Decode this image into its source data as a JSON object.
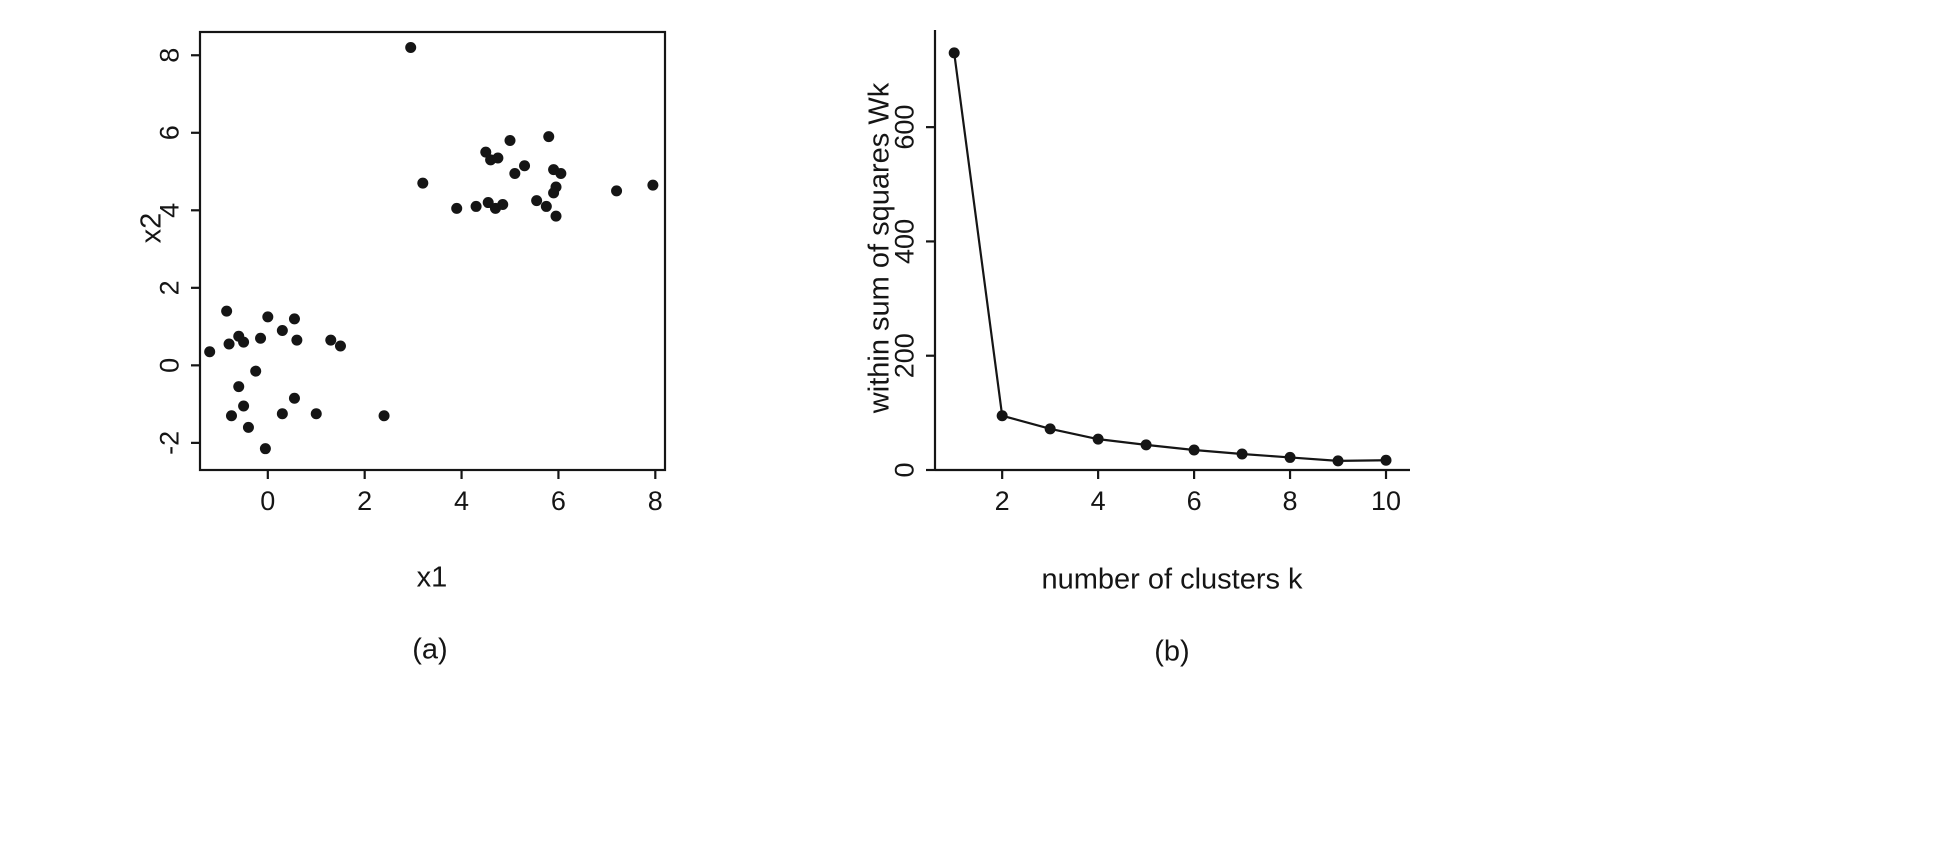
{
  "chart_data": [
    {
      "type": "scatter",
      "caption": "(a)",
      "xlabel": "x1",
      "ylabel": "x2",
      "xlim": [
        -1.4,
        8.2
      ],
      "ylim": [
        -2.7,
        8.6
      ],
      "xticks": [
        0,
        2,
        4,
        6,
        8
      ],
      "yticks": [
        -2,
        0,
        2,
        4,
        6,
        8
      ],
      "box": true,
      "grid": false,
      "points": [
        [
          -1.2,
          0.35
        ],
        [
          -0.85,
          1.4
        ],
        [
          -0.8,
          0.55
        ],
        [
          -0.6,
          0.75
        ],
        [
          -0.5,
          0.6
        ],
        [
          -0.15,
          0.7
        ],
        [
          0.0,
          1.25
        ],
        [
          0.3,
          0.9
        ],
        [
          0.55,
          1.2
        ],
        [
          0.6,
          0.65
        ],
        [
          1.3,
          0.65
        ],
        [
          1.5,
          0.5
        ],
        [
          -0.25,
          -0.15
        ],
        [
          -0.6,
          -0.55
        ],
        [
          -0.5,
          -1.05
        ],
        [
          -0.75,
          -1.3
        ],
        [
          -0.4,
          -1.6
        ],
        [
          -0.05,
          -2.15
        ],
        [
          0.3,
          -1.25
        ],
        [
          0.55,
          -0.85
        ],
        [
          1.0,
          -1.25
        ],
        [
          2.4,
          -1.3
        ],
        [
          2.95,
          8.2
        ],
        [
          3.2,
          4.7
        ],
        [
          3.9,
          4.05
        ],
        [
          4.3,
          4.1
        ],
        [
          4.5,
          5.5
        ],
        [
          4.6,
          5.3
        ],
        [
          4.55,
          4.2
        ],
        [
          4.75,
          5.35
        ],
        [
          4.7,
          4.05
        ],
        [
          4.85,
          4.15
        ],
        [
          5.0,
          5.8
        ],
        [
          5.1,
          4.95
        ],
        [
          5.3,
          5.15
        ],
        [
          5.55,
          4.25
        ],
        [
          5.8,
          5.9
        ],
        [
          5.75,
          4.1
        ],
        [
          5.9,
          5.05
        ],
        [
          5.95,
          4.6
        ],
        [
          6.05,
          4.95
        ],
        [
          5.9,
          4.45
        ],
        [
          5.95,
          3.85
        ],
        [
          7.2,
          4.5
        ],
        [
          7.95,
          4.65
        ]
      ]
    },
    {
      "type": "line",
      "caption": "(b)",
      "xlabel": "number of clusters k",
      "ylabel": "within sum of squares Wk",
      "xlim": [
        0.6,
        10.5
      ],
      "ylim": [
        0,
        770
      ],
      "xticks": [
        2,
        4,
        6,
        8,
        10
      ],
      "yticks": [
        0,
        200,
        400,
        600
      ],
      "box": false,
      "grid": false,
      "x": [
        1,
        2,
        3,
        4,
        5,
        6,
        7,
        8,
        9,
        10
      ],
      "y": [
        730,
        95,
        72,
        54,
        44,
        35,
        28,
        22,
        16,
        17
      ]
    }
  ],
  "colors": {
    "ink": "#151515",
    "background": "#ffffff"
  }
}
